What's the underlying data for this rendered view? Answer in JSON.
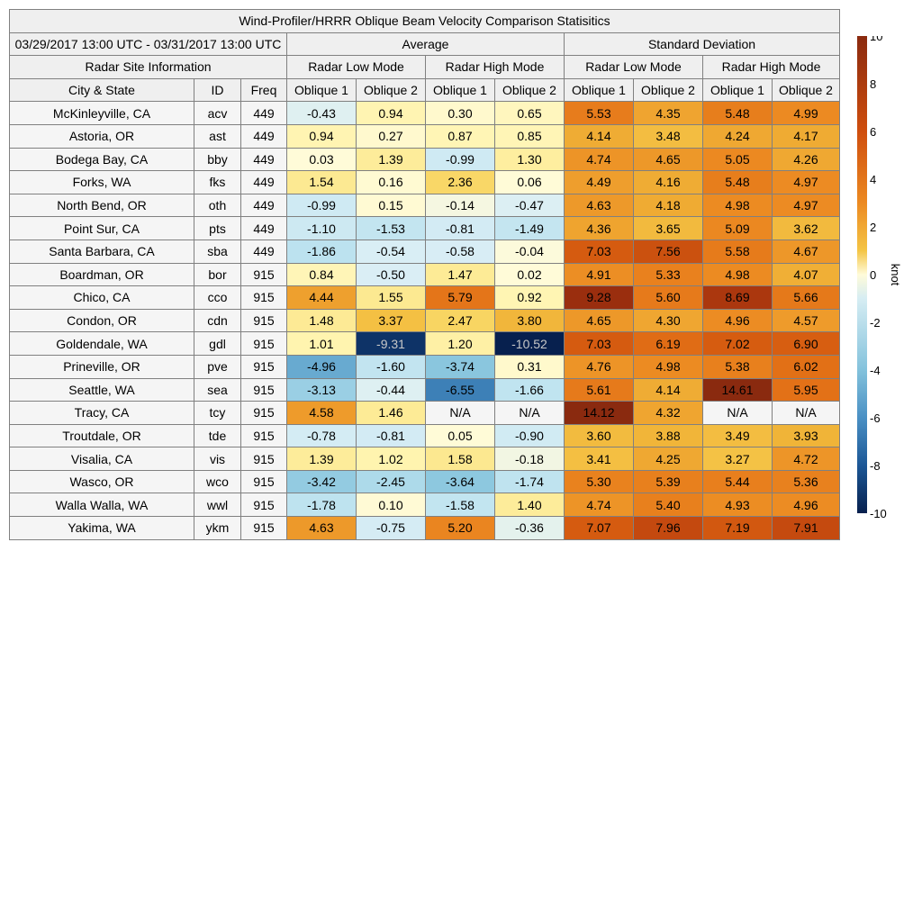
{
  "title": "Wind-Profiler/HRRR Oblique Beam Velocity Comparison Statisitics",
  "date_range": "03/29/2017 13:00 UTC - 03/31/2017 13:00 UTC",
  "group_headers": {
    "average": "Average",
    "std": "Standard Deviation"
  },
  "site_info_label": "Radar Site Information",
  "mode_labels": [
    "Radar Low Mode",
    "Radar High Mode",
    "Radar Low Mode",
    "Radar High Mode"
  ],
  "col_headers": [
    "City & State",
    "ID",
    "Freq",
    "Oblique 1",
    "Oblique 2",
    "Oblique 1",
    "Oblique 2",
    "Oblique 1",
    "Oblique 2",
    "Oblique 1",
    "Oblique 2"
  ],
  "na_label": "N/A",
  "colorbar": {
    "unit": "knot",
    "min": -10,
    "max": 10,
    "ticks": [
      10,
      8,
      6,
      4,
      2,
      0,
      -2,
      -4,
      -6,
      -8,
      -10
    ]
  },
  "chart_data": {
    "type": "heatmap",
    "title": "Wind-Profiler/HRRR Oblique Beam Velocity Comparison Statisitics",
    "unit": "knot",
    "columns": [
      "Avg Low Oblique 1",
      "Avg Low Oblique 2",
      "Avg High Oblique 1",
      "Avg High Oblique 2",
      "Std Low Oblique 1",
      "Std Low Oblique 2",
      "Std High Oblique 1",
      "Std High Oblique 2"
    ],
    "rows": [
      {
        "city": "McKinleyville, CA",
        "id": "acv",
        "freq": "449",
        "values": [
          "-0.43",
          "0.94",
          "0.30",
          "0.65",
          "5.53",
          "4.35",
          "5.48",
          "4.99"
        ]
      },
      {
        "city": "Astoria, OR",
        "id": "ast",
        "freq": "449",
        "values": [
          "0.94",
          "0.27",
          "0.87",
          "0.85",
          "4.14",
          "3.48",
          "4.24",
          "4.17"
        ]
      },
      {
        "city": "Bodega Bay, CA",
        "id": "bby",
        "freq": "449",
        "values": [
          "0.03",
          "1.39",
          "-0.99",
          "1.30",
          "4.74",
          "4.65",
          "5.05",
          "4.26"
        ]
      },
      {
        "city": "Forks, WA",
        "id": "fks",
        "freq": "449",
        "values": [
          "1.54",
          "0.16",
          "2.36",
          "0.06",
          "4.49",
          "4.16",
          "5.48",
          "4.97"
        ]
      },
      {
        "city": "North Bend, OR",
        "id": "oth",
        "freq": "449",
        "values": [
          "-0.99",
          "0.15",
          "-0.14",
          "-0.47",
          "4.63",
          "4.18",
          "4.98",
          "4.97"
        ]
      },
      {
        "city": "Point Sur, CA",
        "id": "pts",
        "freq": "449",
        "values": [
          "-1.10",
          "-1.53",
          "-0.81",
          "-1.49",
          "4.36",
          "3.65",
          "5.09",
          "3.62"
        ]
      },
      {
        "city": "Santa Barbara, CA",
        "id": "sba",
        "freq": "449",
        "values": [
          "-1.86",
          "-0.54",
          "-0.58",
          "-0.04",
          "7.03",
          "7.56",
          "5.58",
          "4.67"
        ]
      },
      {
        "city": "Boardman, OR",
        "id": "bor",
        "freq": "915",
        "values": [
          "0.84",
          "-0.50",
          "1.47",
          "0.02",
          "4.91",
          "5.33",
          "4.98",
          "4.07"
        ]
      },
      {
        "city": "Chico, CA",
        "id": "cco",
        "freq": "915",
        "values": [
          "4.44",
          "1.55",
          "5.79",
          "0.92",
          "9.28",
          "5.60",
          "8.69",
          "5.66"
        ]
      },
      {
        "city": "Condon, OR",
        "id": "cdn",
        "freq": "915",
        "values": [
          "1.48",
          "3.37",
          "2.47",
          "3.80",
          "4.65",
          "4.30",
          "4.96",
          "4.57"
        ]
      },
      {
        "city": "Goldendale, WA",
        "id": "gdl",
        "freq": "915",
        "values": [
          "1.01",
          "-9.31",
          "1.20",
          "-10.52",
          "7.03",
          "6.19",
          "7.02",
          "6.90"
        ]
      },
      {
        "city": "Prineville, OR",
        "id": "pve",
        "freq": "915",
        "values": [
          "-4.96",
          "-1.60",
          "-3.74",
          "0.31",
          "4.76",
          "4.98",
          "5.38",
          "6.02"
        ]
      },
      {
        "city": "Seattle, WA",
        "id": "sea",
        "freq": "915",
        "values": [
          "-3.13",
          "-0.44",
          "-6.55",
          "-1.66",
          "5.61",
          "4.14",
          "14.61",
          "5.95"
        ]
      },
      {
        "city": "Tracy, CA",
        "id": "tcy",
        "freq": "915",
        "values": [
          "4.58",
          "1.46",
          null,
          null,
          "14.12",
          "4.32",
          null,
          null
        ]
      },
      {
        "city": "Troutdale, OR",
        "id": "tde",
        "freq": "915",
        "values": [
          "-0.78",
          "-0.81",
          "0.05",
          "-0.90",
          "3.60",
          "3.88",
          "3.49",
          "3.93"
        ]
      },
      {
        "city": "Visalia, CA",
        "id": "vis",
        "freq": "915",
        "values": [
          "1.39",
          "1.02",
          "1.58",
          "-0.18",
          "3.41",
          "4.25",
          "3.27",
          "4.72"
        ]
      },
      {
        "city": "Wasco, OR",
        "id": "wco",
        "freq": "915",
        "values": [
          "-3.42",
          "-2.45",
          "-3.64",
          "-1.74",
          "5.30",
          "5.39",
          "5.44",
          "5.36"
        ]
      },
      {
        "city": "Walla Walla, WA",
        "id": "wwl",
        "freq": "915",
        "values": [
          "-1.78",
          "0.10",
          "-1.58",
          "1.40",
          "4.74",
          "5.40",
          "4.93",
          "4.96"
        ]
      },
      {
        "city": "Yakima, WA",
        "id": "ykm",
        "freq": "915",
        "values": [
          "4.63",
          "-0.75",
          "5.20",
          "-0.36",
          "7.07",
          "7.96",
          "7.19",
          "7.91"
        ]
      }
    ]
  }
}
